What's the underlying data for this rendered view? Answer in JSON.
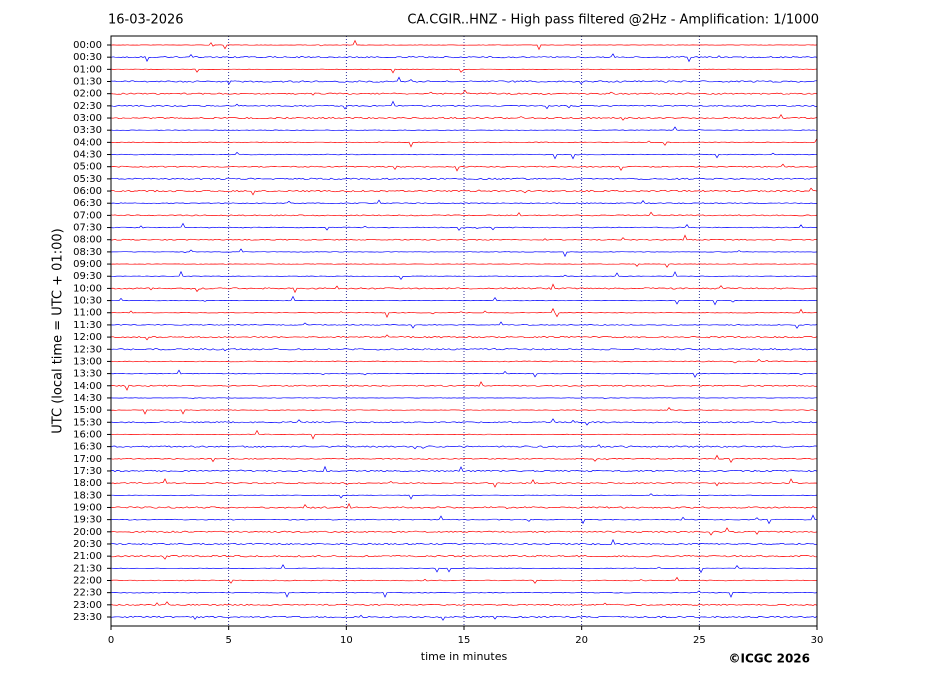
{
  "chart_data": {
    "type": "helicorder",
    "date": "16-03-2026",
    "title": "CA.CGIR..HNZ - High pass filtered @2Hz - Amplification: 1/1000",
    "ylabel": "UTC (local time = UTC + 01:00)",
    "xlabel": "time in minutes",
    "copyright": "©ICGC 2026",
    "categories": [
      "00:00",
      "00:30",
      "01:00",
      "01:30",
      "02:00",
      "02:30",
      "03:00",
      "03:30",
      "04:00",
      "04:30",
      "05:00",
      "05:30",
      "06:00",
      "06:30",
      "07:00",
      "07:30",
      "08:00",
      "08:30",
      "09:00",
      "09:30",
      "10:00",
      "10:30",
      "11:00",
      "11:30",
      "12:00",
      "12:30",
      "13:00",
      "13:30",
      "14:00",
      "14:30",
      "15:00",
      "15:30",
      "16:00",
      "16:30",
      "17:00",
      "17:30",
      "18:00",
      "18:30",
      "19:00",
      "19:30",
      "20:00",
      "20:30",
      "21:00",
      "21:30",
      "22:00",
      "22:30",
      "23:00",
      "23:30"
    ],
    "colors": [
      "#ff0000",
      "#0000ff"
    ],
    "xlim": [
      0,
      30
    ],
    "xticks": [
      0,
      5,
      10,
      15,
      20,
      25,
      30
    ],
    "grid": true
  }
}
